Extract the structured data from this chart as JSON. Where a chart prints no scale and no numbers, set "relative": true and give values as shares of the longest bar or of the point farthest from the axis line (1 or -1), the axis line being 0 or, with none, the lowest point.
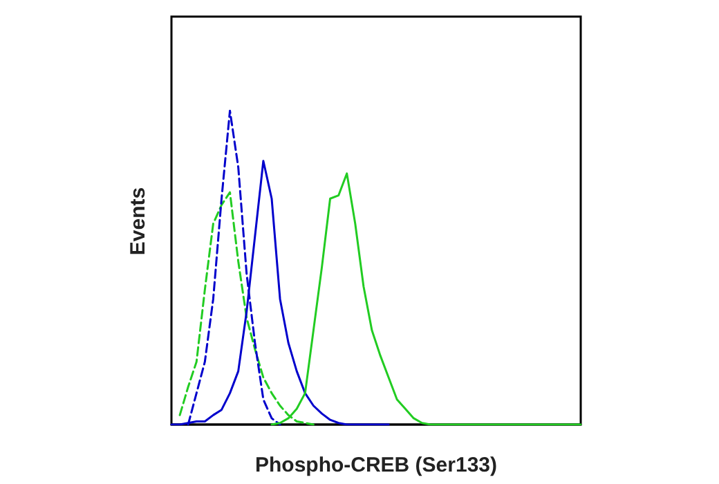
{
  "chart_data": {
    "type": "line",
    "xlabel": "Phospho-CREB (Ser133)",
    "ylabel": "Events",
    "relative": true,
    "grid": false,
    "categories": [
      null,
      null,
      null,
      null,
      null,
      null,
      null,
      null,
      null,
      null,
      null,
      null,
      null,
      null,
      null,
      null,
      null,
      null,
      null,
      null,
      null,
      null,
      null,
      null,
      null,
      null,
      null,
      null,
      null,
      null,
      null,
      null,
      null,
      null,
      null,
      null,
      null,
      null,
      null,
      null,
      null,
      null,
      null,
      null,
      null,
      null,
      null,
      null,
      null,
      null
    ],
    "series": [
      {
        "color": "#22cc22",
        "line_style": "dashed",
        "values": [
          null,
          0.03,
          0.12,
          0.2,
          0.43,
          0.64,
          0.7,
          0.74,
          0.52,
          0.34,
          0.24,
          0.15,
          0.1,
          0.06,
          0.03,
          0.01,
          0.005,
          0,
          null,
          null,
          null,
          null,
          null,
          null,
          null,
          null,
          null,
          null,
          null,
          null,
          null,
          null,
          null,
          null,
          null,
          null,
          null,
          null,
          null,
          null,
          null,
          null,
          null,
          null,
          null,
          null,
          null,
          null,
          null,
          null
        ]
      },
      {
        "color": "#0000cc",
        "line_style": "dashed",
        "values": [
          null,
          null,
          0,
          0.1,
          0.2,
          0.4,
          0.72,
          1,
          0.82,
          0.48,
          0.26,
          0.08,
          0.02,
          0,
          null,
          null,
          null,
          null,
          null,
          null,
          null,
          null,
          null,
          null,
          null,
          null,
          null,
          null,
          null,
          null,
          null,
          null,
          null,
          null,
          null,
          null,
          null,
          null,
          null,
          null,
          null,
          null,
          null,
          null,
          null,
          null,
          null,
          null,
          null,
          null
        ]
      },
      {
        "color": "#0000cc",
        "line_style": "solid",
        "values": [
          0,
          0,
          0.005,
          0.01,
          0.01,
          0.03,
          0.047,
          0.1,
          0.17,
          0.36,
          0.6,
          0.84,
          0.72,
          0.4,
          0.26,
          0.17,
          0.1,
          0.06,
          0.035,
          0.015,
          0.005,
          0,
          0,
          0,
          0,
          0,
          0,
          null,
          null,
          null,
          null,
          null,
          null,
          null,
          null,
          null,
          null,
          null,
          null,
          null,
          null,
          null,
          null,
          null,
          null,
          null,
          null,
          null,
          null,
          null
        ]
      },
      {
        "color": "#22cc22",
        "line_style": "solid",
        "values": [
          null,
          null,
          null,
          null,
          null,
          null,
          null,
          null,
          null,
          null,
          null,
          null,
          0,
          0.005,
          0.02,
          0.05,
          0.1,
          0.3,
          0.5,
          0.72,
          0.73,
          0.8,
          0.64,
          0.44,
          0.3,
          0.22,
          0.15,
          0.08,
          0.05,
          0.02,
          0.005,
          0,
          0,
          0,
          0,
          0,
          0,
          0,
          0,
          0,
          0,
          0,
          0,
          0,
          0,
          0,
          0,
          0,
          0,
          0
        ]
      }
    ]
  }
}
